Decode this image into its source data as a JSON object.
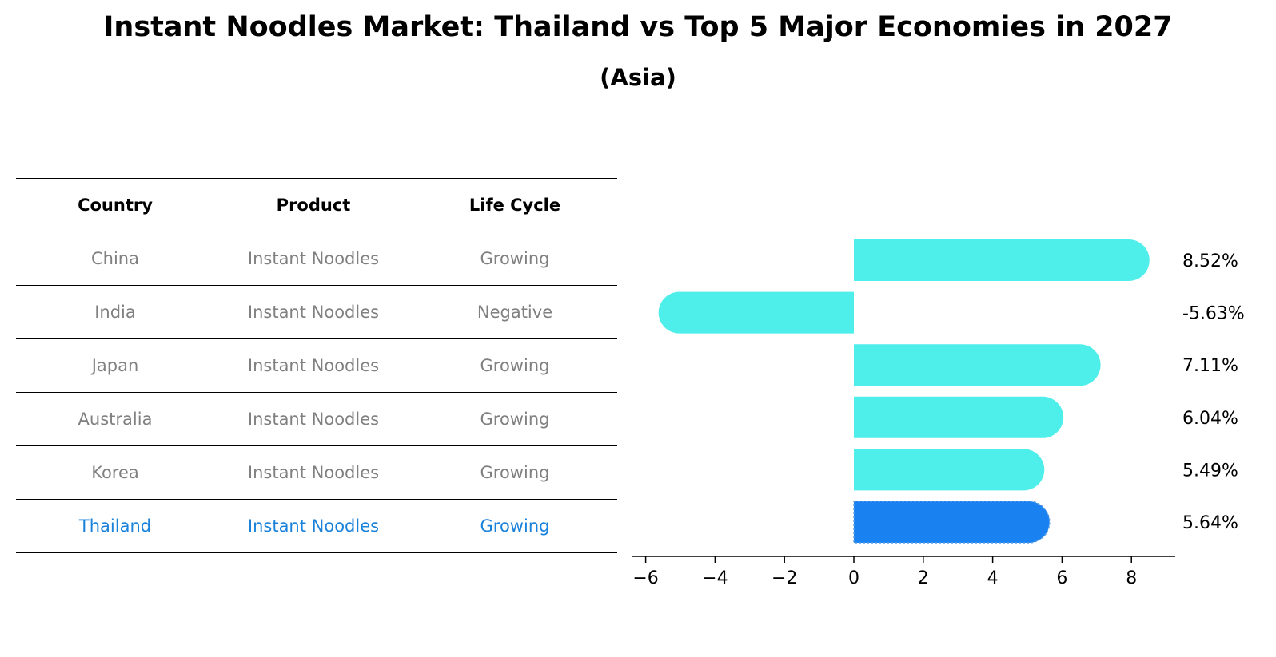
{
  "title": "Instant Noodles Market: Thailand vs Top 5 Major Economies in 2027",
  "subtitle": "(Asia)",
  "table": {
    "headers": [
      "Country",
      "Product",
      "Life Cycle"
    ],
    "rows": [
      {
        "country": "China",
        "product": "Instant Noodles",
        "life_cycle": "Growing"
      },
      {
        "country": "India",
        "product": "Instant Noodles",
        "life_cycle": "Negative"
      },
      {
        "country": "Japan",
        "product": "Instant Noodles",
        "life_cycle": "Growing"
      },
      {
        "country": "Australia",
        "product": "Instant Noodles",
        "life_cycle": "Growing"
      },
      {
        "country": "Korea",
        "product": "Instant Noodles",
        "life_cycle": "Growing"
      },
      {
        "country": "Thailand",
        "product": "Instant Noodles",
        "life_cycle": "Growing"
      }
    ]
  },
  "colors": {
    "bar": "#4eeeea",
    "highlight_bar": "#1a82f0",
    "highlight_text": "#1a82db",
    "muted_text": "#808080"
  },
  "chart_data": {
    "type": "bar",
    "orientation": "horizontal",
    "categories": [
      "China",
      "India",
      "Japan",
      "Australia",
      "Korea",
      "Thailand"
    ],
    "values": [
      8.52,
      -5.63,
      7.11,
      6.04,
      5.49,
      5.64
    ],
    "value_labels": [
      "8.52%",
      "-5.63%",
      "7.11%",
      "6.04%",
      "5.49%",
      "5.64%"
    ],
    "highlight": "Thailand",
    "xlim": [
      -6.4,
      9.2
    ],
    "xticks": [
      -6,
      -4,
      -2,
      0,
      2,
      4,
      6,
      8
    ],
    "xtick_labels": [
      "−6",
      "−4",
      "−2",
      "0",
      "2",
      "4",
      "6",
      "8"
    ],
    "xlabel": "",
    "ylabel": "",
    "grid": false
  }
}
